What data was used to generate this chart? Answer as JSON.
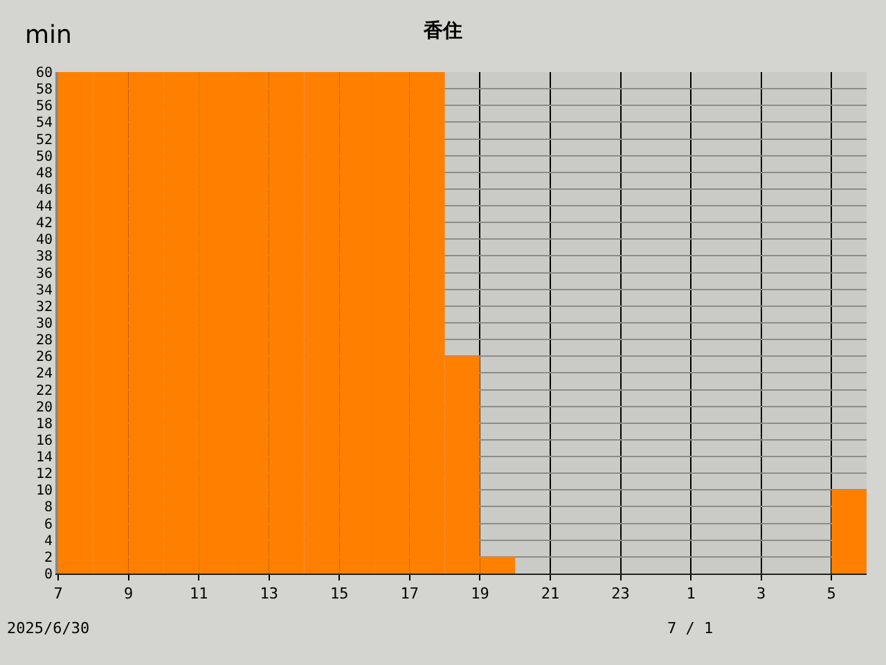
{
  "chart_data": {
    "type": "histogram",
    "title": "香住",
    "ylabel": "min",
    "bins": [
      "2025-06-30T07:00",
      "2025-06-30T08:00",
      "2025-06-30T09:00",
      "2025-06-30T10:00",
      "2025-06-30T11:00",
      "2025-06-30T12:00",
      "2025-06-30T13:00",
      "2025-06-30T14:00",
      "2025-06-30T15:00",
      "2025-06-30T16:00",
      "2025-06-30T17:00",
      "2025-06-30T18:00",
      "2025-06-30T19:00",
      "2025-06-30T20:00",
      "2025-06-30T21:00",
      "2025-06-30T22:00",
      "2025-06-30T23:00",
      "2025-07-01T00:00",
      "2025-07-01T01:00",
      "2025-07-01T02:00",
      "2025-07-01T03:00",
      "2025-07-01T04:00",
      "2025-07-01T05:00",
      "2025-07-01T06:00"
    ],
    "values": [
      60,
      60,
      60,
      60,
      60,
      60,
      60,
      60,
      60,
      60,
      60,
      26,
      2,
      0,
      0,
      0,
      0,
      0,
      0,
      0,
      0,
      0,
      10
    ],
    "color": "#ff8000",
    "xlim": [
      "2025-06-30T07:00",
      "2025-07-01T06:00"
    ],
    "xticks": [
      {
        "value": "2025-06-30T07:00",
        "label": "7"
      },
      {
        "value": "2025-06-30T09:00",
        "label": "9"
      },
      {
        "value": "2025-06-30T11:00",
        "label": "11"
      },
      {
        "value": "2025-06-30T13:00",
        "label": "13"
      },
      {
        "value": "2025-06-30T15:00",
        "label": "15"
      },
      {
        "value": "2025-06-30T17:00",
        "label": "17"
      },
      {
        "value": "2025-06-30T19:00",
        "label": "19"
      },
      {
        "value": "2025-06-30T21:00",
        "label": "21"
      },
      {
        "value": "2025-06-30T23:00",
        "label": "23"
      },
      {
        "value": "2025-07-01T01:00",
        "label": "1"
      },
      {
        "value": "2025-07-01T03:00",
        "label": "3"
      },
      {
        "value": "2025-07-01T05:00",
        "label": "5"
      }
    ],
    "ylim": [
      0,
      60
    ],
    "yticks": [
      0,
      2,
      4,
      6,
      8,
      10,
      12,
      14,
      16,
      18,
      20,
      22,
      24,
      26,
      28,
      30,
      32,
      34,
      36,
      38,
      40,
      42,
      44,
      46,
      48,
      50,
      52,
      54,
      56,
      58,
      60
    ],
    "grid": true,
    "annotations": [
      "2025/6/30",
      "7 / 1"
    ]
  }
}
